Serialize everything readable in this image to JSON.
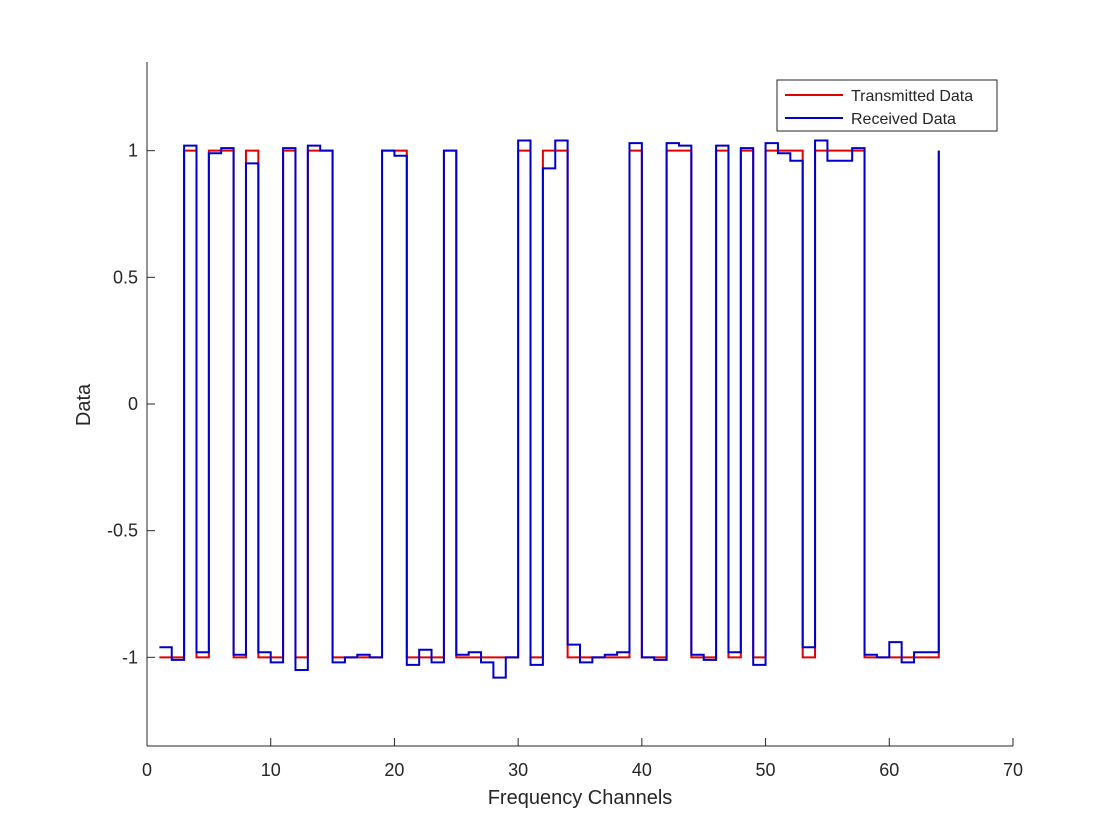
{
  "chart_data": {
    "type": "line",
    "style": "stairs",
    "xlabel": "Frequency Channels",
    "ylabel": "Data",
    "xlim": [
      0,
      70
    ],
    "ylim": [
      -1.35,
      1.35
    ],
    "xticks": [
      0,
      10,
      20,
      30,
      40,
      50,
      60,
      70
    ],
    "yticks": [
      -1,
      -0.5,
      0,
      0.5,
      1
    ],
    "xtick_labels": [
      "0",
      "10",
      "20",
      "30",
      "40",
      "50",
      "60",
      "70"
    ],
    "ytick_labels": [
      "-1",
      "-0.5",
      "0",
      "0.5",
      "1"
    ],
    "grid": false,
    "legend_location": "top-right",
    "x": [
      1,
      2,
      3,
      4,
      5,
      6,
      7,
      8,
      9,
      10,
      11,
      12,
      13,
      14,
      15,
      16,
      17,
      18,
      19,
      20,
      21,
      22,
      23,
      24,
      25,
      26,
      27,
      28,
      29,
      30,
      31,
      32,
      33,
      34,
      35,
      36,
      37,
      38,
      39,
      40,
      41,
      42,
      43,
      44,
      45,
      46,
      47,
      48,
      49,
      50,
      51,
      52,
      53,
      54,
      55,
      56,
      57,
      58,
      59,
      60,
      61,
      62,
      63,
      64
    ],
    "series": [
      {
        "name": "Transmitted Data",
        "color": "#e00000",
        "values": [
          -1,
          -1,
          1,
          -1,
          1,
          1,
          -1,
          1,
          -1,
          -1,
          1,
          -1,
          1,
          1,
          -1,
          -1,
          -1,
          -1,
          1,
          1,
          -1,
          -1,
          -1,
          1,
          -1,
          -1,
          -1,
          -1,
          -1,
          1,
          -1,
          1,
          1,
          -1,
          -1,
          -1,
          -1,
          -1,
          1,
          -1,
          -1,
          1,
          1,
          -1,
          -1,
          1,
          -1,
          1,
          -1,
          1,
          1,
          1,
          -1,
          1,
          1,
          1,
          1,
          -1,
          -1,
          -1,
          -1,
          -1,
          -1,
          1
        ]
      },
      {
        "name": "Received Data",
        "color": "#0000cc",
        "values": [
          -0.96,
          -1.01,
          1.02,
          -0.98,
          0.99,
          1.01,
          -0.99,
          0.95,
          -0.98,
          -1.02,
          1.01,
          -1.05,
          1.02,
          1.0,
          -1.02,
          -1.0,
          -0.99,
          -1.0,
          1.0,
          0.98,
          -1.03,
          -0.97,
          -1.02,
          1.0,
          -0.99,
          -0.98,
          -1.02,
          -1.08,
          -1.0,
          1.04,
          -1.03,
          0.93,
          1.04,
          -0.95,
          -1.02,
          -1.0,
          -0.99,
          -0.98,
          1.03,
          -1.0,
          -1.01,
          1.03,
          1.02,
          -0.99,
          -1.01,
          1.02,
          -0.98,
          1.01,
          -1.03,
          1.03,
          0.99,
          0.96,
          -0.96,
          1.04,
          0.96,
          0.96,
          1.01,
          -0.99,
          -1.0,
          -0.94,
          -1.02,
          -0.98,
          -0.98,
          1.0
        ]
      }
    ]
  }
}
